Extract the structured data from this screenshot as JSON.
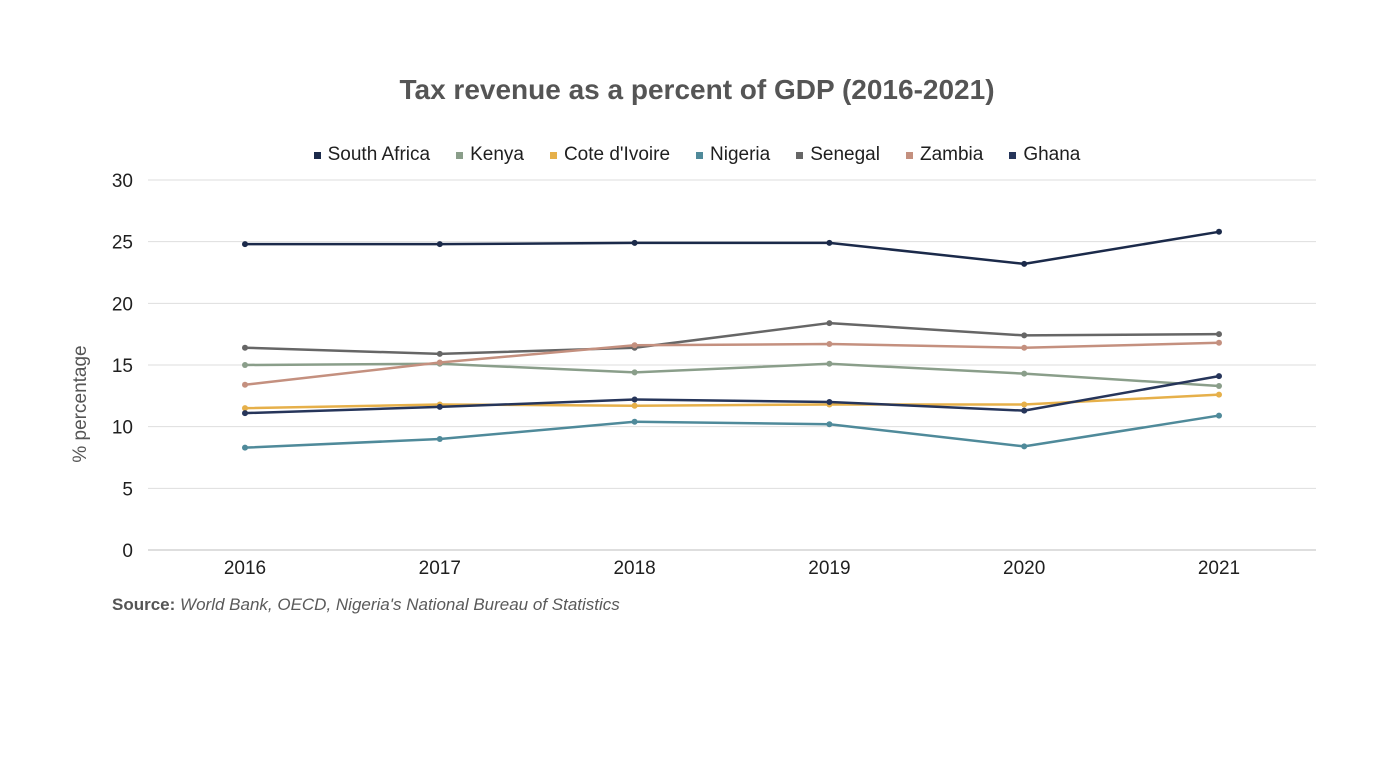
{
  "chart_data": {
    "type": "line",
    "title": "Tax revenue as a percent of GDP (2016-2021)",
    "xlabel": "",
    "ylabel": "% percentage",
    "categories": [
      "2016",
      "2017",
      "2018",
      "2019",
      "2020",
      "2021"
    ],
    "ylim": [
      0,
      30
    ],
    "yticks": [
      "0",
      "5",
      "10",
      "15",
      "20",
      "25",
      "30"
    ],
    "grid": true,
    "legend_position": "top",
    "series": [
      {
        "name": "South Africa",
        "color": "#1b2a4a",
        "values": [
          24.8,
          24.8,
          24.9,
          24.9,
          23.2,
          25.8
        ]
      },
      {
        "name": "Kenya",
        "color": "#8a9e8a",
        "values": [
          15.0,
          15.1,
          14.4,
          15.1,
          14.3,
          13.3
        ]
      },
      {
        "name": "Cote d'Ivoire",
        "color": "#e6b04a",
        "values": [
          11.5,
          11.8,
          11.7,
          11.8,
          11.8,
          12.6
        ]
      },
      {
        "name": "Nigeria",
        "color": "#4f8a9a",
        "values": [
          8.3,
          9.0,
          10.4,
          10.2,
          8.4,
          10.9
        ]
      },
      {
        "name": "Senegal",
        "color": "#666666",
        "values": [
          16.4,
          15.9,
          16.4,
          18.4,
          17.4,
          17.5
        ]
      },
      {
        "name": "Zambia",
        "color": "#c4907f",
        "values": [
          13.4,
          15.2,
          16.6,
          16.7,
          16.4,
          16.8
        ]
      },
      {
        "name": "Ghana",
        "color": "#26355a",
        "values": [
          11.1,
          11.6,
          12.2,
          12.0,
          11.3,
          14.1
        ]
      }
    ]
  },
  "source": {
    "label": "Source:",
    "text": "World Bank, OECD, Nigeria's National Bureau of Statistics"
  }
}
